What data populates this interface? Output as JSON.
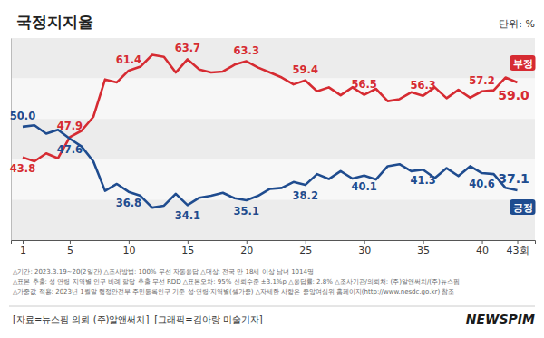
{
  "chart_data": {
    "type": "line",
    "title": "국정지지율",
    "subtitle": "단위: %",
    "x": [
      1,
      2,
      3,
      4,
      5,
      6,
      7,
      8,
      9,
      10,
      11,
      12,
      13,
      14,
      15,
      16,
      17,
      18,
      19,
      20,
      21,
      22,
      23,
      24,
      25,
      26,
      27,
      28,
      29,
      30,
      31,
      32,
      33,
      34,
      35,
      36,
      37,
      38,
      39,
      40,
      41,
      42,
      43
    ],
    "xlim": [
      0,
      44.5
    ],
    "xticks": [
      1,
      5,
      10,
      15,
      20,
      25,
      30,
      35,
      40,
      {
        "value": 43,
        "label": "43회"
      }
    ],
    "ylim": [
      27,
      68
    ],
    "tick_labels": "x",
    "series": [
      {
        "name": "부정",
        "color": "#d62b32",
        "values": [
          43.8,
          43.0,
          44.6,
          43.6,
          47.9,
          49.2,
          52.0,
          59.6,
          59.0,
          61.4,
          62.2,
          64.6,
          64.2,
          61.0,
          63.7,
          61.6,
          61.0,
          61.2,
          62.6,
          63.3,
          62.0,
          61.0,
          60.0,
          58.6,
          59.4,
          57.2,
          58.0,
          56.4,
          58.0,
          56.5,
          57.7,
          55.2,
          55.6,
          57.0,
          56.3,
          58.0,
          55.8,
          57.5,
          55.9,
          57.2,
          57.4,
          60.0,
          59.0
        ],
        "value_labels": [
          "43.8",
          null,
          null,
          null,
          "47.9",
          null,
          null,
          null,
          null,
          "61.4",
          null,
          null,
          null,
          null,
          "63.7",
          null,
          null,
          null,
          null,
          "63.3",
          null,
          null,
          null,
          null,
          "59.4",
          null,
          null,
          null,
          null,
          "56.5",
          null,
          null,
          null,
          null,
          "56.3",
          null,
          null,
          null,
          null,
          "57.2",
          null,
          null,
          "59.0"
        ]
      },
      {
        "name": "긍정",
        "color": "#1f4c8f",
        "values": [
          50.0,
          50.3,
          48.6,
          49.4,
          47.6,
          46.0,
          43.0,
          37.0,
          38.4,
          36.8,
          36.0,
          33.6,
          34.0,
          36.4,
          34.1,
          35.6,
          36.0,
          36.6,
          35.5,
          35.1,
          36.0,
          37.4,
          37.6,
          38.8,
          38.2,
          40.4,
          39.4,
          41.0,
          39.5,
          40.1,
          39.3,
          42.0,
          42.4,
          41.0,
          41.3,
          39.6,
          41.6,
          40.0,
          42.0,
          40.6,
          40.4,
          37.6,
          37.1
        ],
        "value_labels": [
          "50.0",
          null,
          null,
          null,
          "47.6",
          null,
          null,
          null,
          null,
          "36.8",
          null,
          null,
          null,
          null,
          "34.1",
          null,
          null,
          null,
          null,
          "35.1",
          null,
          null,
          null,
          null,
          "38.2",
          null,
          null,
          null,
          null,
          "40.1",
          null,
          null,
          null,
          null,
          "41.3",
          null,
          null,
          null,
          null,
          "40.6",
          null,
          null,
          "37.1"
        ]
      }
    ],
    "notes": [
      "△기간: 2023.3.19~20(2일간)  △조사방법: 100% 무선 자동응답  △대상: 전국 만 18세 이상 남녀 1014명",
      "△표본 추출: 성 연령 지역별 인구 비례 할당 추출 무선 RDD  △표본오차: 95% 신뢰수준 ±3.1%p  △응답률: 2.8%  △조사기관/의뢰처: (주)알앤써치/(주)뉴스핌",
      "△가중값 적용: 2023년 1월말 행정안전부 주민등록인구 기준 성·연령·지역별(셀가중)  △자세한 사항은 중앙여심위 홈페이지(http://www.nesdc.go.kr) 참조"
    ],
    "source": [
      "[자료=뉴스핌 의뢰 (주)알앤써치]",
      "[그래픽=김아랑 미술기자]"
    ],
    "logo": "NEWSPIM"
  }
}
